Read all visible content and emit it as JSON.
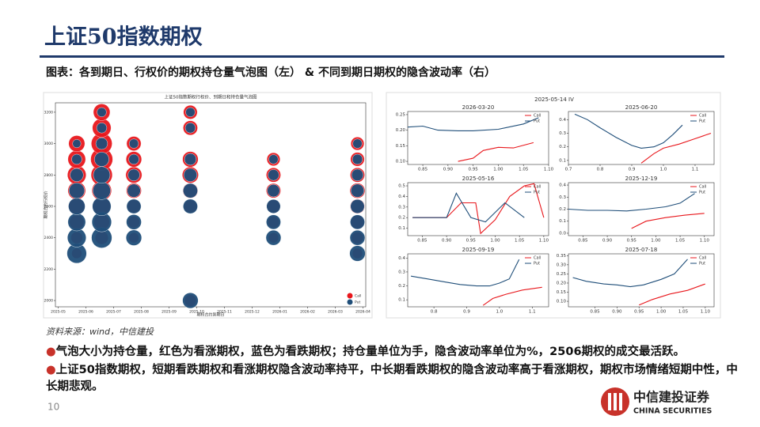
{
  "header": {
    "title": "上证50指数期权",
    "caption": "图表：各到期日、行权价的期权持仓量气泡图（左） & 不同到期日期权的隐含波动率（右）"
  },
  "chart_data": [
    {
      "type": "scatter",
      "title": "上证50指数期权行权价、到期日和持仓量气泡图",
      "x_label": "期权合约到期日",
      "y_label": "期权合约行权价",
      "xlim": [
        -0.1,
        11.1
      ],
      "xticks": [
        {
          "value": 0,
          "label": "2025-05"
        },
        {
          "value": 1,
          "label": "2025-06"
        },
        {
          "value": 2,
          "label": "2025-07"
        },
        {
          "value": 3,
          "label": "2025-08"
        },
        {
          "value": 4,
          "label": "2025-09"
        },
        {
          "value": 5,
          "label": "2025-10"
        },
        {
          "value": 6,
          "label": "2025-11"
        },
        {
          "value": 7,
          "label": "2025-12"
        },
        {
          "value": 8,
          "label": "2026-01"
        },
        {
          "value": 9,
          "label": "2026-02"
        },
        {
          "value": 10,
          "label": "2026-03"
        },
        {
          "value": 11,
          "label": "2026-04"
        }
      ],
      "ylim": [
        1960,
        3260
      ],
      "yticks": [
        2000,
        2200,
        2400,
        2600,
        2800,
        3000,
        3200
      ],
      "legend": "lower right",
      "series": [
        {
          "name": "Call",
          "color": "#e8171c",
          "x": [
            0.67,
            0.67,
            0.67,
            0.67,
            0.67,
            0.67,
            0.67,
            0.67,
            1.57,
            1.57,
            1.57,
            1.57,
            1.57,
            1.57,
            1.57,
            1.57,
            1.57,
            2.73,
            2.73,
            2.73,
            2.73,
            2.73,
            2.73,
            2.73,
            4.77,
            4.77,
            4.77,
            4.77,
            4.77,
            4.77,
            4.77,
            7.77,
            7.77,
            7.77,
            7.77,
            7.77,
            7.77,
            10.8,
            10.8,
            10.8,
            10.8,
            10.8,
            10.8,
            10.8,
            10.8
          ],
          "values": [
            2300,
            2400,
            2500,
            2600,
            2700,
            2800,
            2900,
            3000,
            2400,
            2500,
            2600,
            2700,
            2800,
            2900,
            3000,
            3100,
            3200,
            2400,
            2500,
            2600,
            2700,
            2800,
            2900,
            3000,
            2000,
            2600,
            2700,
            2800,
            2900,
            3100,
            3200,
            2400,
            2500,
            2600,
            2700,
            2800,
            2900,
            2300,
            2400,
            2500,
            2600,
            2700,
            2800,
            2900,
            3000
          ],
          "sizes": [
            6000,
            8000,
            12000,
            15000,
            18000,
            20000,
            18000,
            15000,
            10000,
            14000,
            18000,
            22000,
            26000,
            28000,
            25000,
            20000,
            16000,
            6000,
            8000,
            10000,
            13000,
            15000,
            14000,
            12000,
            8000,
            10000,
            13000,
            15000,
            14000,
            12000,
            11000,
            6000,
            8000,
            10000,
            12000,
            12000,
            10000,
            6000,
            8000,
            10000,
            12000,
            13000,
            12000,
            11000,
            10000
          ]
        },
        {
          "name": "Put",
          "color": "#1f4e79",
          "x": [
            0.67,
            0.67,
            0.67,
            0.67,
            0.67,
            0.67,
            0.67,
            0.67,
            1.57,
            1.57,
            1.57,
            1.57,
            1.57,
            1.57,
            1.57,
            1.57,
            1.57,
            2.73,
            2.73,
            2.73,
            2.73,
            2.73,
            2.73,
            2.73,
            4.77,
            4.77,
            4.77,
            4.77,
            4.77,
            4.77,
            4.77,
            7.77,
            7.77,
            7.77,
            7.77,
            7.77,
            7.77,
            10.8,
            10.8,
            10.8,
            10.8,
            10.8,
            10.8,
            10.8,
            10.8
          ],
          "values": [
            2300,
            2400,
            2500,
            2600,
            2700,
            2800,
            2900,
            3000,
            2400,
            2500,
            2600,
            2700,
            2800,
            2900,
            3000,
            3100,
            3200,
            2400,
            2500,
            2600,
            2700,
            2800,
            2900,
            3000,
            2000,
            2600,
            2700,
            2800,
            2900,
            3100,
            3200,
            2400,
            2500,
            2600,
            2700,
            2800,
            2900,
            2300,
            2400,
            2500,
            2600,
            2700,
            2800,
            2900,
            3000
          ],
          "sizes": [
            22000,
            20000,
            18000,
            16000,
            14000,
            10000,
            6000,
            4000,
            24000,
            22000,
            20000,
            18000,
            16000,
            12000,
            8000,
            6000,
            5000,
            14000,
            13000,
            12000,
            10000,
            8000,
            6000,
            5000,
            14000,
            12000,
            12000,
            10000,
            8000,
            6000,
            5000,
            13000,
            12000,
            11000,
            9000,
            7000,
            5000,
            14000,
            13000,
            12000,
            11000,
            10000,
            8000,
            6000,
            5000
          ]
        }
      ]
    },
    {
      "type": "line",
      "suptitle": "2025-05-14 IV",
      "panels": [
        {
          "title": "2026-03-20",
          "xlim": [
            0.82,
            1.1
          ],
          "xticks": [
            0.85,
            {
              "value": 0.9,
              "label": "0.90"
            },
            0.95,
            {
              "value": 1,
              "label": "1.00"
            },
            1.05,
            {
              "value": 1.1,
              "label": "1.10"
            }
          ],
          "ylim": [
            0.09,
            0.26
          ],
          "yticks": [
            {
              "value": 0.1,
              "label": "0.10"
            },
            0.15,
            {
              "value": 0.2,
              "label": "0.20"
            },
            0.25
          ],
          "series": [
            {
              "name": "Call",
              "color": "#e8171c",
              "x": [
                0.92,
                0.95,
                0.97,
                1.0,
                1.03,
                1.07
              ],
              "values": [
                0.1,
                0.11,
                0.135,
                0.145,
                0.143,
                0.16
              ]
            },
            {
              "name": "Put",
              "color": "#1f4e79",
              "x": [
                0.82,
                0.85,
                0.88,
                0.92,
                0.95,
                1.0,
                1.05,
                1.08
              ],
              "values": [
                0.21,
                0.213,
                0.2,
                0.198,
                0.198,
                0.203,
                0.22,
                0.24
              ]
            }
          ]
        },
        {
          "title": "2025-06-20",
          "xlim": [
            0.7,
            1.16
          ],
          "xticks": [
            0.7,
            0.8,
            0.9,
            {
              "value": 1,
              "label": "1.0"
            },
            1.1
          ],
          "ylim": [
            0.07,
            0.46
          ],
          "yticks": [
            0.1,
            0.2,
            0.3,
            0.4
          ],
          "series": [
            {
              "name": "Call",
              "color": "#e8171c",
              "x": [
                0.93,
                0.97,
                1.0,
                1.05,
                1.1,
                1.15
              ],
              "values": [
                0.08,
                0.15,
                0.19,
                0.22,
                0.26,
                0.3
              ]
            },
            {
              "name": "Put",
              "color": "#1f4e79",
              "x": [
                0.72,
                0.76,
                0.8,
                0.85,
                0.9,
                0.93,
                0.97,
                1.0,
                1.03,
                1.06
              ],
              "values": [
                0.44,
                0.4,
                0.34,
                0.27,
                0.21,
                0.19,
                0.2,
                0.23,
                0.29,
                0.36
              ]
            }
          ]
        },
        {
          "title": "2025-05-16",
          "xlim": [
            0.82,
            1.11
          ],
          "xticks": [
            0.85,
            {
              "value": 0.9,
              "label": "0.90"
            },
            0.95,
            {
              "value": 1,
              "label": "1.00"
            },
            1.05,
            {
              "value": 1.1,
              "label": "1.10"
            }
          ],
          "ylim": [
            0.03,
            0.53
          ],
          "yticks": [
            0.1,
            0.2,
            0.3,
            0.4,
            0.5
          ],
          "series": [
            {
              "name": "Call",
              "color": "#e8171c",
              "x": [
                0.83,
                0.9,
                0.93,
                0.96,
                0.97,
                1.0,
                1.03,
                1.06,
                1.08,
                1.1
              ],
              "values": [
                0.2,
                0.2,
                0.34,
                0.34,
                0.05,
                0.18,
                0.4,
                0.5,
                0.52,
                0.2
              ]
            },
            {
              "name": "Put",
              "color": "#1f4e79",
              "x": [
                0.83,
                0.9,
                0.92,
                0.95,
                0.98,
                1.02,
                1.06
              ],
              "values": [
                0.2,
                0.2,
                0.43,
                0.2,
                0.16,
                0.34,
                0.2
              ]
            }
          ]
        },
        {
          "title": "2025-12-19",
          "xlim": [
            0.82,
            1.12
          ],
          "xticks": [
            0.85,
            {
              "value": 0.9,
              "label": "0.90"
            },
            0.95,
            {
              "value": 1,
              "label": "1.00"
            },
            1.05,
            {
              "value": 1.1,
              "label": "1.10"
            }
          ],
          "ylim": [
            -0.02,
            0.42
          ],
          "yticks": [
            {
              "value": 0,
              "label": "0.0"
            },
            0.1,
            0.2,
            0.3,
            0.4
          ],
          "series": [
            {
              "name": "Call",
              "color": "#e8171c",
              "x": [
                0.95,
                0.98,
                1.02,
                1.06,
                1.1
              ],
              "values": [
                0.04,
                0.1,
                0.13,
                0.15,
                0.165
              ]
            },
            {
              "name": "Put",
              "color": "#1f4e79",
              "x": [
                0.82,
                0.86,
                0.9,
                0.94,
                0.98,
                1.02,
                1.05,
                1.08
              ],
              "values": [
                0.2,
                0.19,
                0.19,
                0.185,
                0.2,
                0.22,
                0.25,
                0.33
              ]
            }
          ]
        },
        {
          "title": "2025-09-19",
          "xlim": [
            0.72,
            1.15
          ],
          "xticks": [
            0.8,
            0.9,
            {
              "value": 1,
              "label": "1.0"
            },
            1.1
          ],
          "ylim": [
            0.05,
            0.43
          ],
          "yticks": [
            0.1,
            0.2,
            0.3,
            0.4
          ],
          "series": [
            {
              "name": "Call",
              "color": "#e8171c",
              "x": [
                0.95,
                0.98,
                1.02,
                1.07,
                1.13
              ],
              "values": [
                0.06,
                0.11,
                0.14,
                0.17,
                0.19
              ]
            },
            {
              "name": "Put",
              "color": "#1f4e79",
              "x": [
                0.73,
                0.78,
                0.83,
                0.88,
                0.93,
                0.97,
                1.0,
                1.03,
                1.06
              ],
              "values": [
                0.27,
                0.25,
                0.23,
                0.21,
                0.2,
                0.2,
                0.22,
                0.25,
                0.39
              ]
            }
          ]
        },
        {
          "title": "2025-07-18",
          "xlim": [
            0.79,
            1.12
          ],
          "xticks": [
            0.85,
            {
              "value": 0.9,
              "label": "0.90"
            },
            0.95,
            {
              "value": 1,
              "label": "1.00"
            },
            1.05,
            {
              "value": 1.1,
              "label": "1.10"
            }
          ],
          "ylim": [
            0.07,
            0.36
          ],
          "yticks": [
            {
              "value": 0.1,
              "label": "0.10"
            },
            0.15,
            {
              "value": 0.2,
              "label": "0.20"
            },
            0.25,
            {
              "value": 0.3,
              "label": "0.30"
            },
            0.35
          ],
          "series": [
            {
              "name": "Call",
              "color": "#e8171c",
              "x": [
                0.95,
                0.98,
                1.02,
                1.06,
                1.1
              ],
              "values": [
                0.08,
                0.11,
                0.14,
                0.16,
                0.195
              ]
            },
            {
              "name": "Put",
              "color": "#1f4e79",
              "x": [
                0.8,
                0.83,
                0.87,
                0.9,
                0.93,
                0.96,
                1.0,
                1.03,
                1.06
              ],
              "values": [
                0.23,
                0.21,
                0.195,
                0.19,
                0.18,
                0.19,
                0.22,
                0.25,
                0.33
              ]
            }
          ]
        }
      ]
    }
  ],
  "source": "资料来源：wind，中信建投",
  "bullets": [
    "气泡大小为持仓量，红色为看涨期权，蓝色为看跌期权；持仓量单位为手，隐含波动率单位为%，2506期权的成交最活跃。",
    "上证50指数期权，短期看跌期权和看涨期权隐含波动率持平，中长期看跌期权的隐含波动率高于看涨期权，期权市场情绪短期中性，中长期悲观。"
  ],
  "footer": {
    "page": "10",
    "logo_cn": "中信建投证券",
    "logo_en": "CHINA SECURITIES"
  }
}
